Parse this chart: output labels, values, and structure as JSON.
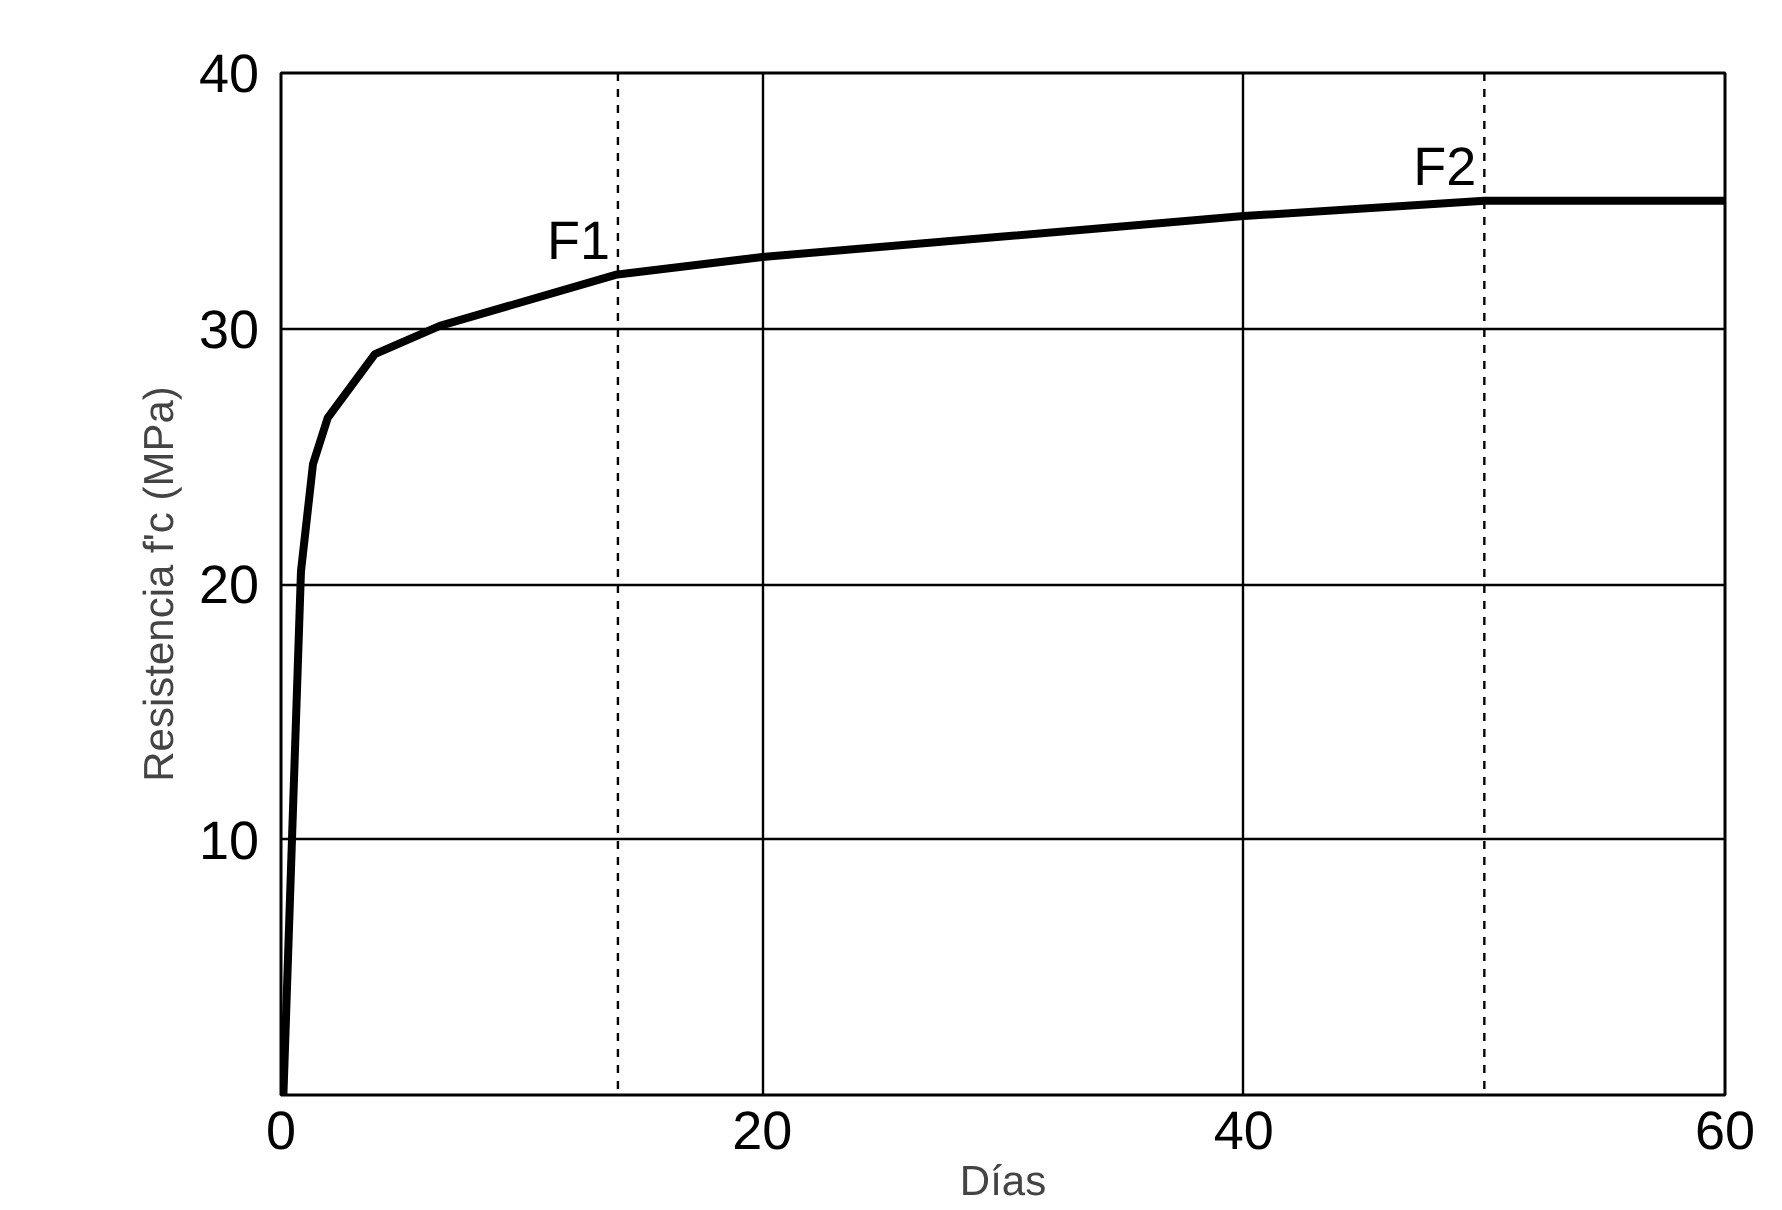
{
  "chart_data": {
    "type": "line",
    "xlabel": "Días",
    "ylabel": "Resistencia f'c (MPa)",
    "x": [
      0.1,
      0.83,
      1.33,
      1.94,
      3.9,
      6.6,
      13.9,
      20,
      30,
      40,
      50,
      60
    ],
    "series": [
      {
        "color": "#000000",
        "values": [
          0,
          20.5,
          24.7,
          26.5,
          29,
          30.1,
          32.1,
          32.8,
          33.6,
          34.4,
          35.0,
          35.0
        ]
      }
    ],
    "xlim": [
      0,
      60
    ],
    "ylim": [
      0,
      40
    ],
    "xticks": [
      0,
      20,
      40,
      60
    ],
    "yticks": [
      {
        "value": 0,
        "label": null
      },
      10,
      20,
      30,
      40
    ],
    "grid": true,
    "marker": "none",
    "line_style": "solid",
    "ref_lines": [
      {
        "axis": "x",
        "value": 14,
        "line_style": "dashed",
        "color": "#000000"
      },
      {
        "axis": "x",
        "value": 50,
        "line_style": "dashed",
        "color": "#000000"
      }
    ],
    "annotations": [
      {
        "text": "F1",
        "x": 14,
        "y": 32.1
      },
      {
        "text": "F2",
        "x": 50,
        "y": 35.0
      }
    ]
  }
}
